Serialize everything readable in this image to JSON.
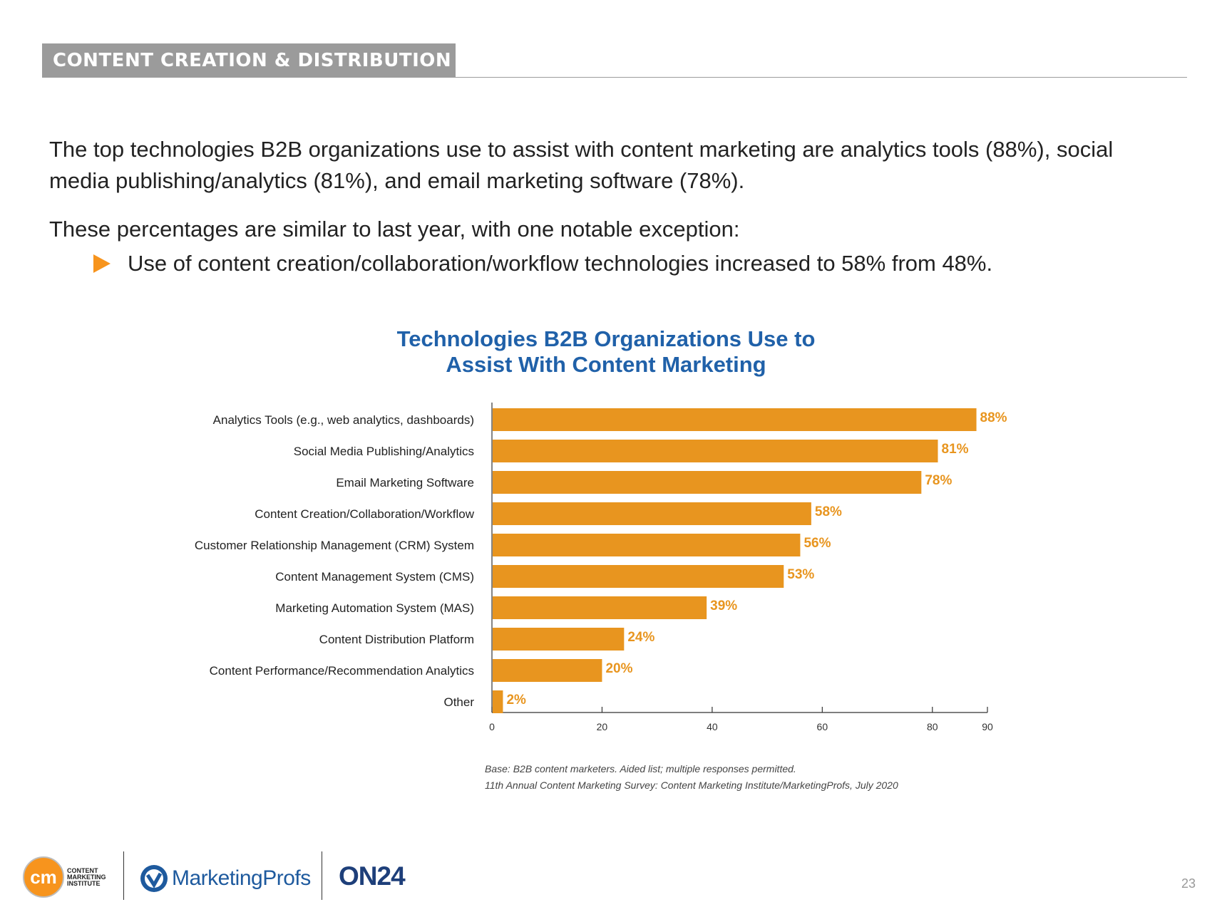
{
  "section_header": "CONTENT CREATION & DISTRIBUTION",
  "intro": {
    "paragraph1": "The top technologies B2B organizations use to assist with content marketing are analytics tools (88%), social media publishing/analytics (81%), and email marketing software (78%).",
    "paragraph2": "These percentages are similar to last year, with one notable exception:",
    "bullet": "Use of content creation/collaboration/workflow technologies increased to 58% from 48%."
  },
  "chart_data": {
    "type": "bar",
    "orientation": "horizontal",
    "title_line1": "Technologies B2B Organizations Use to",
    "title_line2": "Assist With Content Marketing",
    "categories": [
      "Analytics Tools (e.g., web analytics, dashboards)",
      "Social Media Publishing/Analytics",
      "Email Marketing Software",
      "Content Creation/Collaboration/Workflow",
      "Customer Relationship Management (CRM) System",
      "Content Management System (CMS)",
      "Marketing Automation System (MAS)",
      "Content Distribution Platform",
      "Content Performance/Recommendation Analytics",
      "Other"
    ],
    "values": [
      88,
      81,
      78,
      58,
      56,
      53,
      39,
      24,
      20,
      2
    ],
    "value_labels": [
      "88%",
      "81%",
      "78%",
      "58%",
      "56%",
      "53%",
      "39%",
      "24%",
      "20%",
      "2%"
    ],
    "xlim": [
      0,
      90
    ],
    "xticks": [
      0,
      20,
      40,
      60,
      80,
      90
    ],
    "bar_color": "#e8951f",
    "label_color": "#e8951f",
    "title_color": "#2061a9"
  },
  "source": {
    "line1": "Base: B2B content marketers. Aided list; multiple responses permitted.",
    "line2": "11th Annual Content Marketing Survey: Content Marketing Institute/MarketingProfs, July 2020"
  },
  "footer": {
    "cmi_logo_text": "CONTENT MARKETING INSTITUTE",
    "marketingprofs_logo_text": "MarketingProfs",
    "on24_logo_text": "ON24",
    "page_number": "23"
  }
}
